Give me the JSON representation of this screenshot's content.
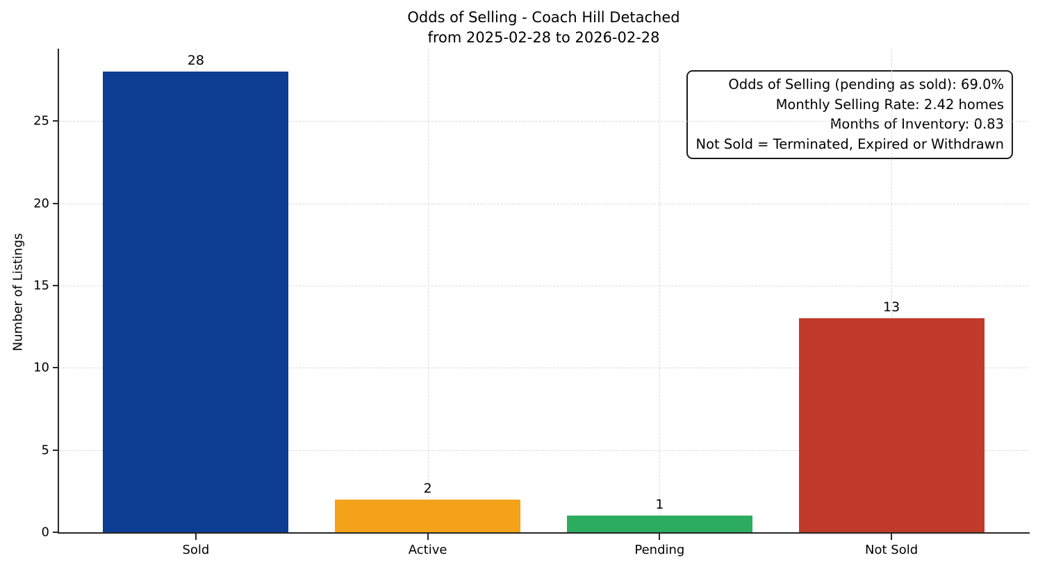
{
  "chart_data": {
    "type": "bar",
    "title": "Odds of Selling - Coach Hill Detached",
    "subtitle": "from 2025-02-28 to 2026-02-28",
    "categories": [
      "Sold",
      "Active",
      "Pending",
      "Not Sold"
    ],
    "values": [
      28,
      2,
      1,
      13
    ],
    "bar_colors": [
      "#0d3d93",
      "#f5a21b",
      "#2bac5e",
      "#c13a2b"
    ],
    "value_labels": [
      "28",
      "2",
      "1",
      "13"
    ],
    "xlabel": "",
    "ylabel": "Number of Listings",
    "ylim": [
      0,
      29.4
    ],
    "yticks": [
      0,
      5,
      10,
      15,
      20,
      25
    ],
    "grid": "dashed light-gray gridlines on both axes",
    "legend": "none",
    "annotation_position": "top-right"
  },
  "annotation": {
    "lines": [
      "Odds of Selling (pending as sold): 69.0%",
      "Monthly Selling Rate: 2.42 homes",
      "Months of Inventory: 0.83",
      "Not Sold = Terminated, Expired or Withdrawn"
    ],
    "stats": {
      "odds_of_selling_pending_as_sold_pct": 69.0,
      "monthly_selling_rate_homes": 2.42,
      "months_of_inventory": 0.83,
      "not_sold_definition": "Terminated, Expired or Withdrawn"
    }
  },
  "colors": {
    "background": "#ffffff",
    "spine": "#262626",
    "gridline": "#d9d9d9",
    "text": "#000000"
  }
}
